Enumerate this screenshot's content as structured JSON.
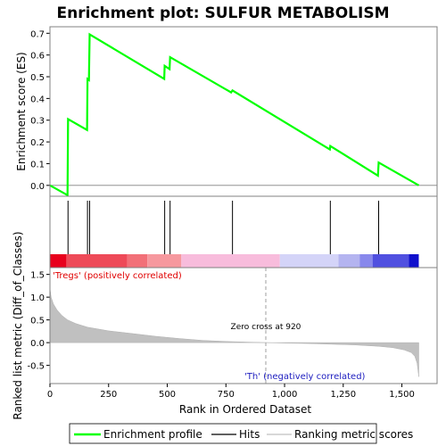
{
  "chart_data": {
    "type": "line",
    "title": "Enrichment plot: SULFUR METABOLISM",
    "es_panel": {
      "ylabel": "Enrichment score (ES)",
      "ylim": [
        -0.05,
        0.73
      ],
      "yticks": [
        0.0,
        0.1,
        0.2,
        0.3,
        0.4,
        0.5,
        0.6,
        0.7
      ],
      "ytick_labels": [
        "0.0",
        "0.1",
        "0.2",
        "0.3",
        "0.4",
        "0.5",
        "0.6",
        "0.7"
      ],
      "series": [
        {
          "name": "Enrichment profile",
          "color": "#00ff00",
          "points": [
            [
              0,
              0.0
            ],
            [
              75,
              -0.045
            ],
            [
              77,
              0.305
            ],
            [
              158,
              0.255
            ],
            [
              160,
              0.49
            ],
            [
              166,
              0.485
            ],
            [
              169,
              0.695
            ],
            [
              487,
              0.49
            ],
            [
              489,
              0.55
            ],
            [
              510,
              0.535
            ],
            [
              512,
              0.59
            ],
            [
              772,
              0.428
            ],
            [
              778,
              0.437
            ],
            [
              1193,
              0.165
            ],
            [
              1195,
              0.181
            ],
            [
              1398,
              0.045
            ],
            [
              1401,
              0.105
            ],
            [
              1572,
              0.0
            ]
          ]
        }
      ]
    },
    "hits_panel": {
      "hit_positions": [
        77,
        160,
        169,
        489,
        512,
        778,
        1195,
        1401
      ]
    },
    "metric_panel": {
      "ylabel": "Ranked list metric (Diff_of_Classes)",
      "ylim": [
        -0.9,
        1.65
      ],
      "yticks": [
        -0.5,
        0.0,
        0.5,
        1.0,
        1.5
      ],
      "ytick_labels": [
        "-0.5",
        "0.0",
        "0.5",
        "1.0",
        "1.5"
      ],
      "curve": [
        [
          0,
          1.2
        ],
        [
          5,
          1.0
        ],
        [
          15,
          0.85
        ],
        [
          30,
          0.72
        ],
        [
          50,
          0.6
        ],
        [
          75,
          0.5
        ],
        [
          110,
          0.42
        ],
        [
          160,
          0.34
        ],
        [
          250,
          0.26
        ],
        [
          350,
          0.2
        ],
        [
          450,
          0.14
        ],
        [
          550,
          0.09
        ],
        [
          650,
          0.05
        ],
        [
          750,
          0.025
        ],
        [
          850,
          0.01
        ],
        [
          920,
          0.0
        ],
        [
          1000,
          -0.01
        ],
        [
          1100,
          -0.02
        ],
        [
          1200,
          -0.035
        ],
        [
          1300,
          -0.05
        ],
        [
          1400,
          -0.08
        ],
        [
          1460,
          -0.11
        ],
        [
          1510,
          -0.16
        ],
        [
          1540,
          -0.22
        ],
        [
          1555,
          -0.3
        ],
        [
          1565,
          -0.45
        ],
        [
          1572,
          -0.75
        ]
      ],
      "zero_cross_label": "Zero cross at 920",
      "zero_cross_x": 920,
      "positive_label": "'Tregs' (positively correlated)",
      "negative_label": "'Th' (negatively correlated)",
      "xlabel": "Rank in Ordered Dataset",
      "xlim": [
        0,
        1650
      ],
      "xticks": [
        0,
        250,
        500,
        750,
        1000,
        1250,
        1500
      ],
      "xtick_labels": [
        "0",
        "250",
        "500",
        "750",
        "1,000",
        "1,250",
        "1,500"
      ]
    },
    "color_bar": [
      {
        "start": 0,
        "end": 70,
        "color": "#e8001c"
      },
      {
        "start": 70,
        "end": 330,
        "color": "#ee4a58"
      },
      {
        "start": 330,
        "end": 415,
        "color": "#f27078"
      },
      {
        "start": 415,
        "end": 560,
        "color": "#f6989e"
      },
      {
        "start": 560,
        "end": 980,
        "color": "#f8bcdc"
      },
      {
        "start": 980,
        "end": 1230,
        "color": "#d4d4f8"
      },
      {
        "start": 1230,
        "end": 1320,
        "color": "#b4b4f0"
      },
      {
        "start": 1320,
        "end": 1375,
        "color": "#8888ec"
      },
      {
        "start": 1375,
        "end": 1530,
        "color": "#5050e0"
      },
      {
        "start": 1530,
        "end": 1572,
        "color": "#1010cc"
      }
    ],
    "legend": {
      "placement": "bottom",
      "items": [
        {
          "label": "Enrichment profile",
          "color": "#00ff00"
        },
        {
          "label": "Hits",
          "color": "#000000"
        },
        {
          "label": "Ranking metric scores",
          "color": "#c0c0c0"
        }
      ]
    }
  }
}
